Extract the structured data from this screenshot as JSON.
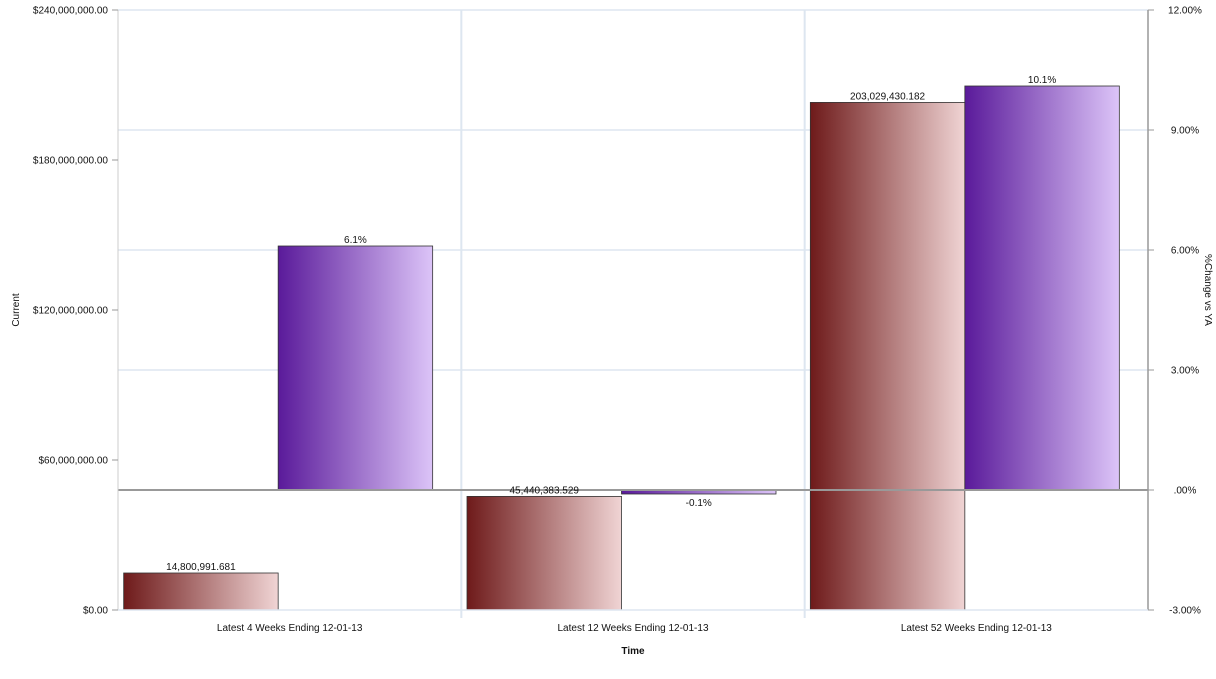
{
  "chart_data": {
    "type": "bar",
    "categories": [
      "Latest 4 Weeks Ending 12-01-13",
      "Latest 12 Weeks Ending 12-01-13",
      "Latest 52 Weeks Ending 12-01-13"
    ],
    "series": [
      {
        "name": "Current",
        "axis": "left",
        "values": [
          14800991.681,
          45440383.529,
          203029430.182
        ],
        "labels": [
          "14,800,991.681",
          "45,440,383.529",
          "203,029,430.182"
        ],
        "color_dark": "#6e1a1a",
        "color_light": "#f0d4d4"
      },
      {
        "name": "%Change vs YA",
        "axis": "right",
        "values": [
          6.1,
          -0.1,
          10.1
        ],
        "labels": [
          "6.1%",
          "-0.1%",
          "10.1%"
        ],
        "color_dark": "#5a1a9a",
        "color_light": "#dcc4f8"
      }
    ],
    "xlabel": "Time",
    "ylabel": "Current",
    "y2label": "%Change vs YA",
    "ylim": [
      0,
      240000000
    ],
    "y2lim": [
      -3,
      12
    ],
    "yticks": [
      0,
      60000000,
      120000000,
      180000000,
      240000000
    ],
    "ytick_labels": [
      "$0.00",
      "$60,000,000.00",
      "$120,000,000.00",
      "$180,000,000.00",
      "$240,000,000.00"
    ],
    "y2ticks": [
      -3,
      0,
      3,
      6,
      9,
      12
    ],
    "y2tick_labels": [
      "-3.00%",
      ".00%",
      "3.00%",
      "6.00%",
      "9.00%",
      "12.00%"
    ],
    "grid": true,
    "legend": "none"
  }
}
